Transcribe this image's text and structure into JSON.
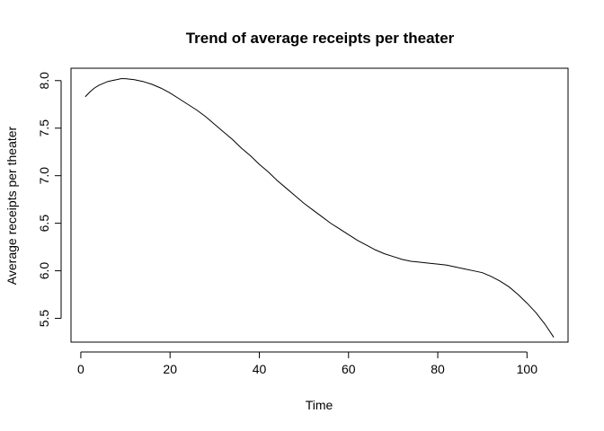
{
  "chart_data": {
    "type": "line",
    "title": "Trend of average receipts per theater",
    "xlabel": "Time",
    "ylabel": "Average receipts per theater",
    "xlim": [
      -2.2,
      109.2
    ],
    "ylim": [
      5.25,
      8.13
    ],
    "xticks": [
      0,
      20,
      40,
      60,
      80,
      100
    ],
    "xtick_labels": [
      "0",
      "20",
      "40",
      "60",
      "80",
      "100"
    ],
    "yticks": [
      5.5,
      6.0,
      6.5,
      7.0,
      7.5,
      8.0
    ],
    "ytick_labels": [
      "5.5",
      "6.0",
      "6.5",
      "7.0",
      "7.5",
      "8.0"
    ],
    "grid": false,
    "series": [
      {
        "name": "Average receipts per theater",
        "color": "#000000",
        "x": [
          1,
          2,
          3,
          4,
          5,
          6,
          7,
          8,
          9,
          10,
          12,
          14,
          16,
          18,
          20,
          22,
          24,
          26,
          28,
          30,
          32,
          34,
          36,
          38,
          40,
          42,
          44,
          46,
          48,
          50,
          52,
          54,
          56,
          58,
          60,
          62,
          64,
          66,
          68,
          70,
          72,
          74,
          76,
          78,
          80,
          82,
          84,
          86,
          88,
          90,
          92,
          94,
          96,
          98,
          100,
          102,
          104,
          106
        ],
        "y": [
          7.83,
          7.88,
          7.92,
          7.95,
          7.97,
          7.99,
          8.0,
          8.01,
          8.02,
          8.02,
          8.01,
          7.99,
          7.96,
          7.92,
          7.87,
          7.81,
          7.75,
          7.69,
          7.62,
          7.54,
          7.46,
          7.38,
          7.29,
          7.21,
          7.12,
          7.04,
          6.95,
          6.87,
          6.79,
          6.71,
          6.64,
          6.57,
          6.5,
          6.44,
          6.38,
          6.32,
          6.27,
          6.22,
          6.18,
          6.15,
          6.12,
          6.1,
          6.09,
          6.08,
          6.07,
          6.06,
          6.04,
          6.02,
          6.0,
          5.98,
          5.94,
          5.89,
          5.83,
          5.75,
          5.66,
          5.56,
          5.44,
          5.3
        ]
      }
    ]
  }
}
